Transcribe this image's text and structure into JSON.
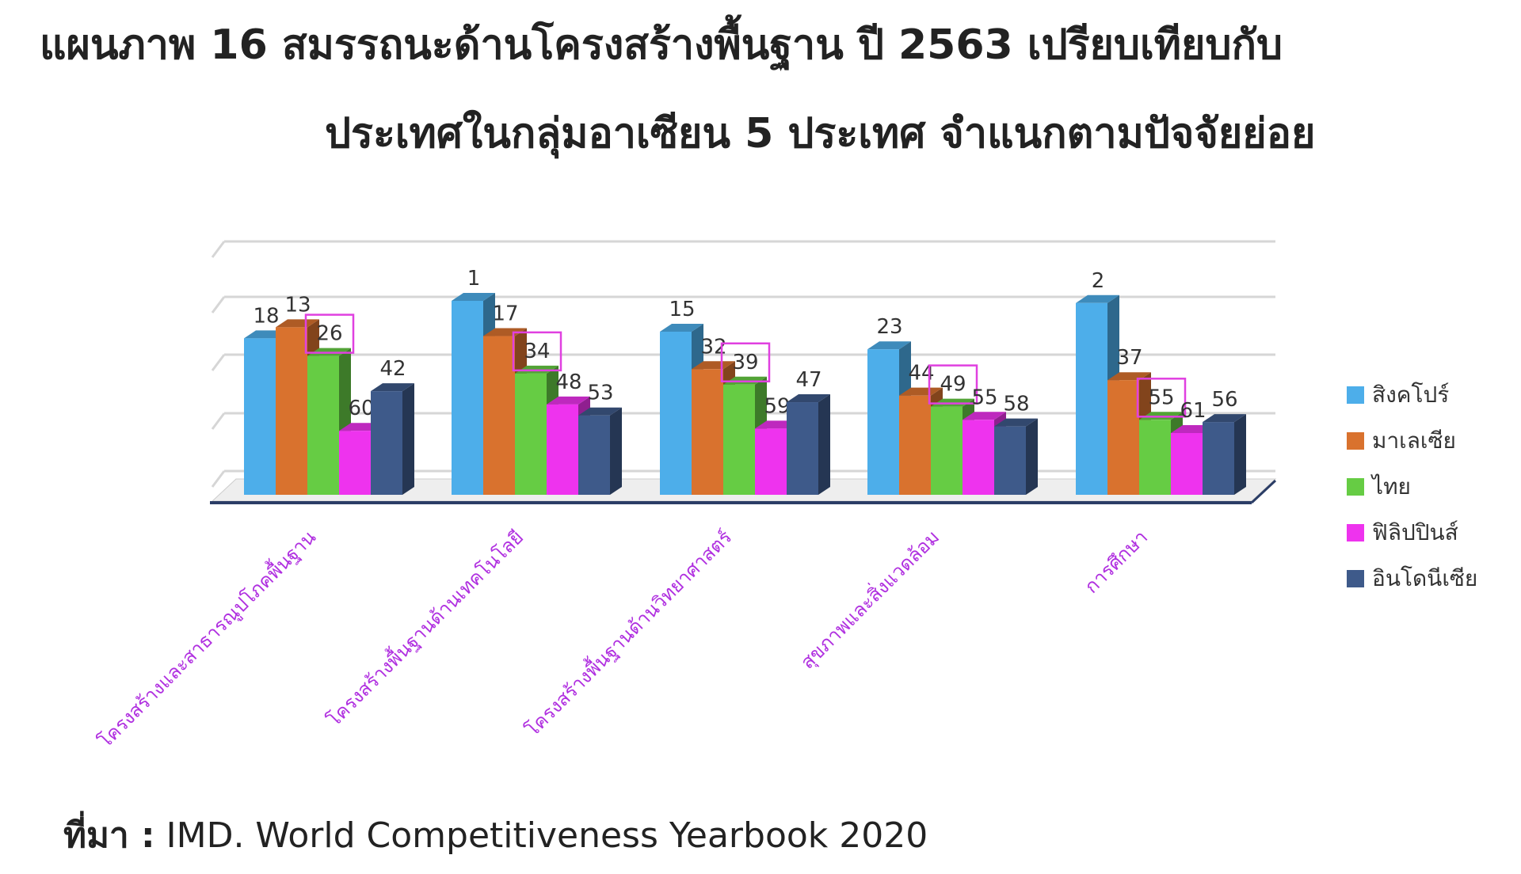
{
  "title": {
    "line1": "แผนภาพ 16  สมรรถนะด้านโครงสร้างพื้นฐาน ปี 2563 เปรียบเทียบกับ",
    "line2": "ประเทศในกลุ่มอาเซียน 5 ประเทศ จำแนกตามปัจจัยย่อย"
  },
  "source": {
    "label": "ที่มา :",
    "text": "IMD. World Competitiveness Yearbook 2020"
  },
  "colors": {
    "singapore": "#4DAEEA",
    "malaysia": "#D9722E",
    "thailand": "#66CC44",
    "philippines": "#EE33EE",
    "indonesia": "#3E5A8A",
    "category_text": "#B030E0",
    "highlight_box": "#E040E0"
  },
  "chart_data": {
    "type": "bar",
    "subtype": "3d-grouped",
    "categories": [
      "โครงสร้างและสาธารณูปโภคพื้นฐาน",
      "โครงสร้างพื้นฐานด้านเทคโนโลยี",
      "โครงสร้างพื้นฐานด้านวิทยาศาสตร์",
      "สุขภาพและสิ่งแวดล้อม",
      "การศึกษา"
    ],
    "series": [
      {
        "name": "สิงคโปร์",
        "values": [
          18,
          1,
          15,
          23,
          2
        ]
      },
      {
        "name": "มาเลเซีย",
        "values": [
          13,
          17,
          32,
          44,
          37
        ]
      },
      {
        "name": "ไทย",
        "values": [
          26,
          34,
          39,
          49,
          55
        ]
      },
      {
        "name": "ฟิลิปปินส์",
        "values": [
          60,
          48,
          59,
          55,
          61
        ]
      },
      {
        "name": "อินโดนีเซีย",
        "values": [
          42,
          53,
          47,
          58,
          56
        ]
      }
    ],
    "value_meaning": "rank (lower is better, bar height is inverted)",
    "highlighted_series": "ไทย",
    "legend_position": "right",
    "grid": true
  }
}
